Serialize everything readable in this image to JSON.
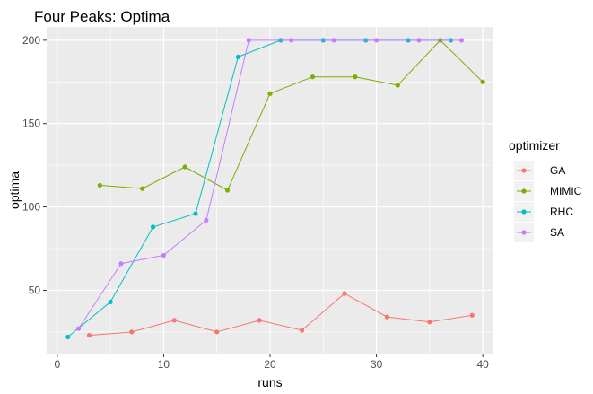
{
  "chart_data": {
    "type": "line",
    "title": "Four Peaks: Optima",
    "xlabel": "runs",
    "ylabel": "optima",
    "xlim": [
      -1,
      41
    ],
    "ylim": [
      12,
      208
    ],
    "xticks": [
      0,
      10,
      20,
      30,
      40
    ],
    "yticks": [
      50,
      100,
      150,
      200
    ],
    "grid": true,
    "legend": {
      "title": "optimizer",
      "placement": "right"
    },
    "series": [
      {
        "name": "GA",
        "color": "#F8766D",
        "x": [
          3,
          7,
          11,
          15,
          19,
          23,
          27,
          31,
          35,
          39
        ],
        "y": [
          23,
          25,
          32,
          25,
          32,
          26,
          48,
          34,
          31,
          35
        ]
      },
      {
        "name": "MIMIC",
        "color": "#7CAE00",
        "x": [
          4,
          8,
          12,
          16,
          20,
          24,
          28,
          32,
          36,
          40
        ],
        "y": [
          113,
          111,
          124,
          110,
          168,
          178,
          178,
          173,
          200,
          175
        ]
      },
      {
        "name": "RHC",
        "color": "#00BFC4",
        "x": [
          1,
          5,
          9,
          13,
          17,
          21,
          25,
          29,
          33,
          37
        ],
        "y": [
          22,
          43,
          88,
          96,
          190,
          200,
          200,
          200,
          200,
          200
        ]
      },
      {
        "name": "SA",
        "color": "#C77CFF",
        "x": [
          2,
          6,
          10,
          14,
          18,
          22,
          26,
          30,
          34,
          38
        ],
        "y": [
          27,
          66,
          71,
          92,
          200,
          200,
          200,
          200,
          200,
          200
        ]
      }
    ]
  }
}
